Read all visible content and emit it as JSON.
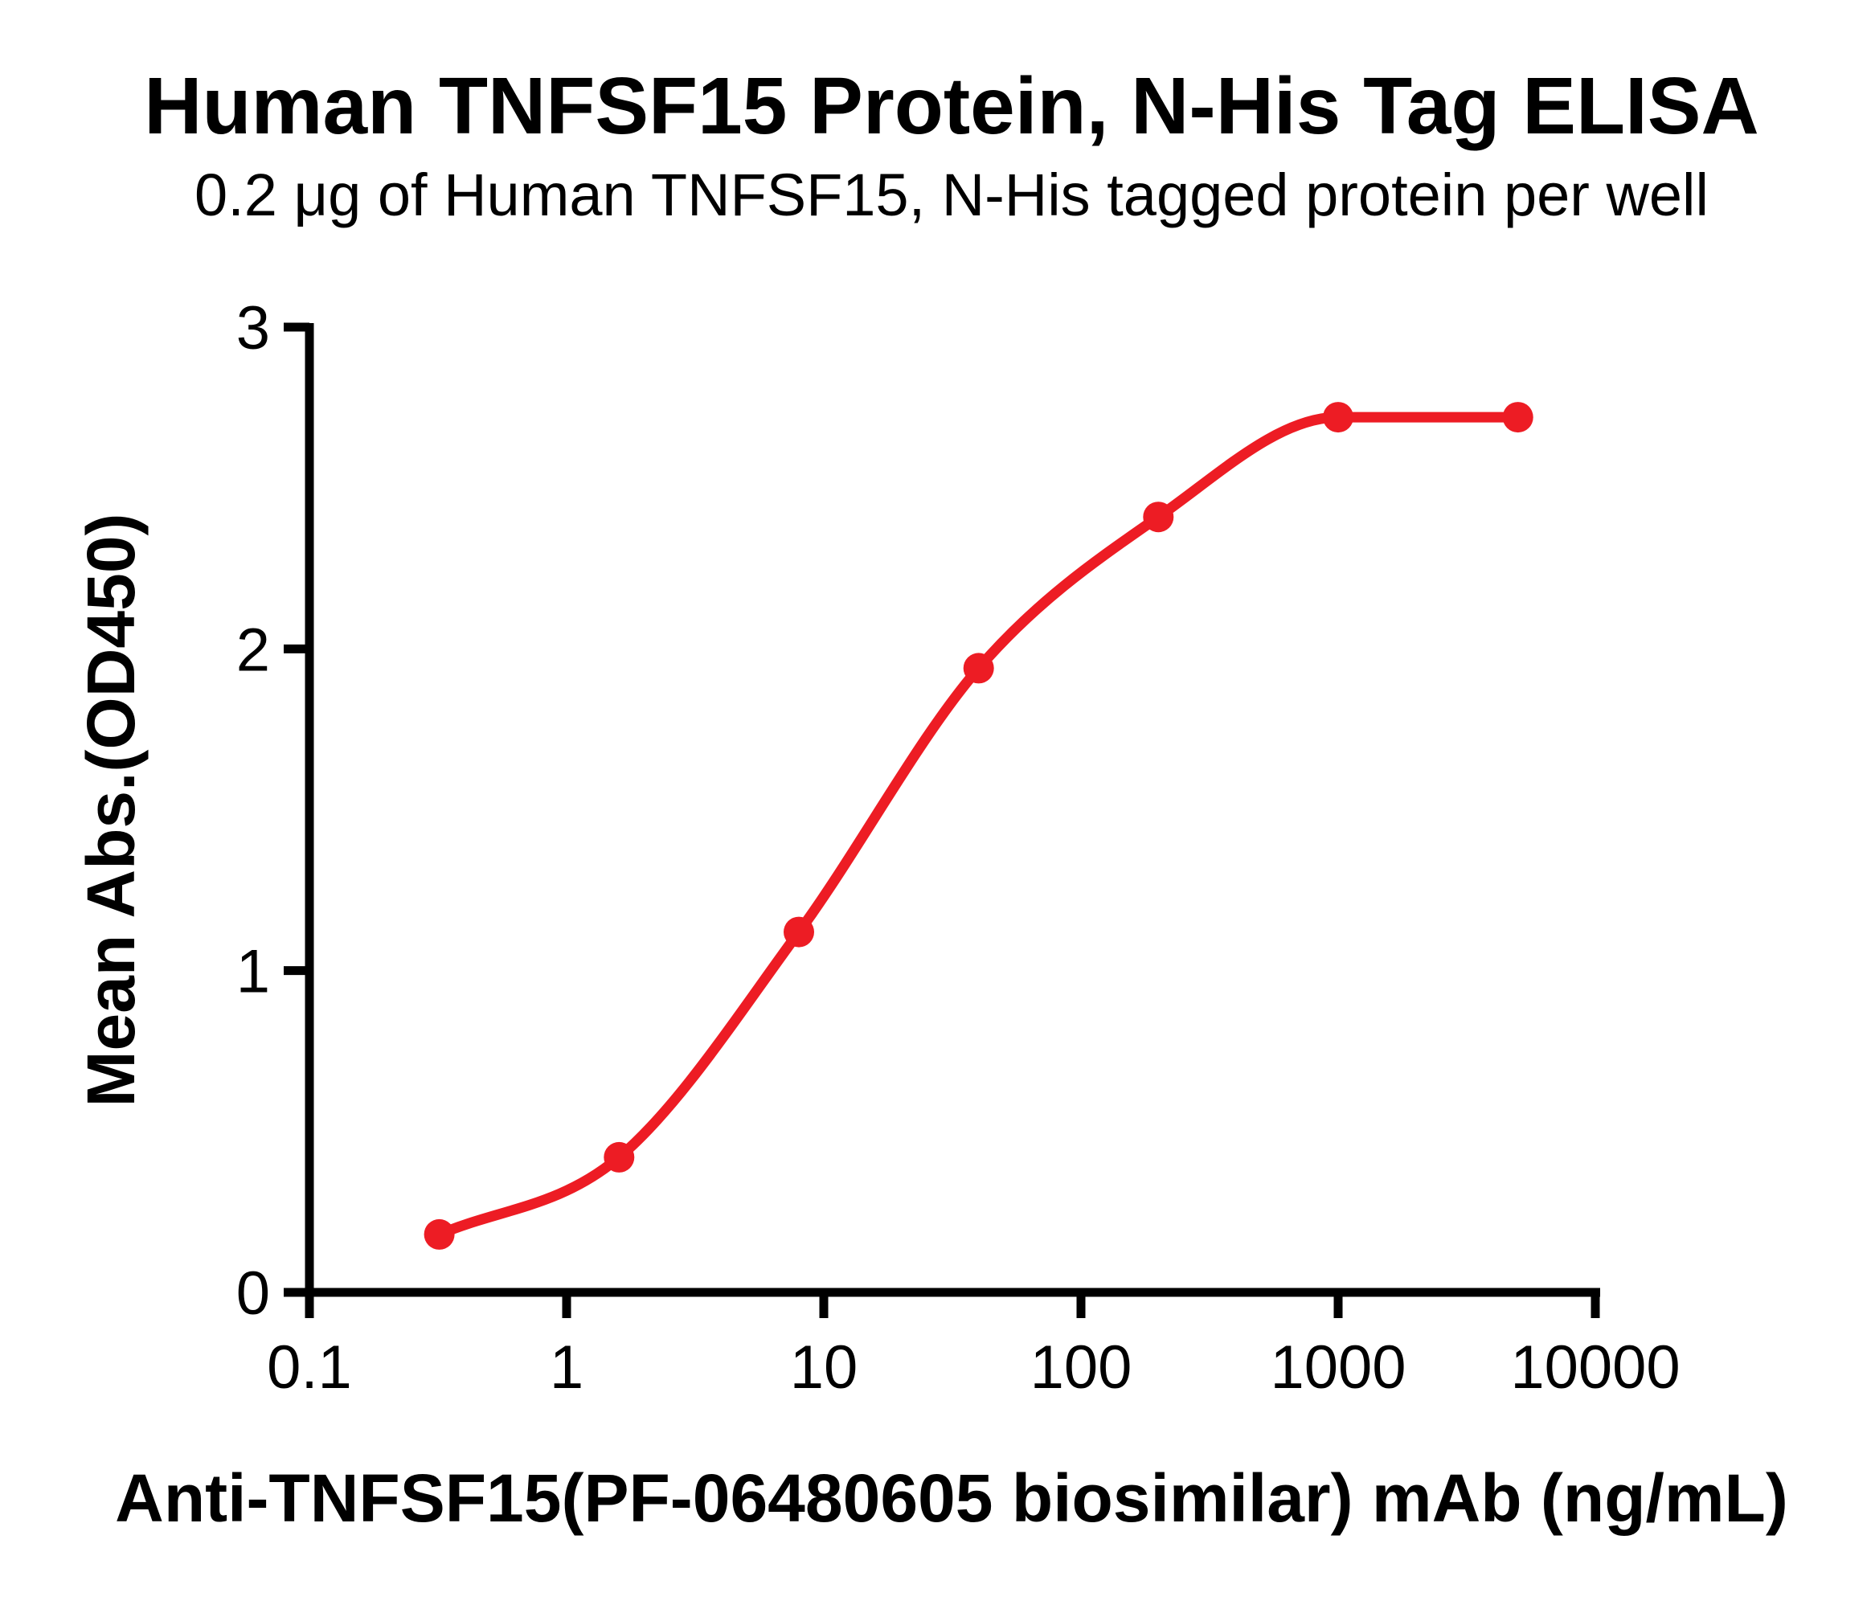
{
  "page": {
    "background": "#ffffff",
    "text_color": "#000000"
  },
  "chart_data": {
    "type": "scatter",
    "curve": "sigmoid-fit-line",
    "title": "Human TNFSF15 Protein, N-His Tag ELISA",
    "subtitle": "0.2 μg of Human TNFSF15, N-His tagged protein per well",
    "xlabel": "Anti-TNFSF15(PF-06480605 biosimilar) mAb (ng/mL)",
    "ylabel": "Mean Abs.(OD450)",
    "x_scale": "log",
    "xlim": [
      0.1,
      10000
    ],
    "ylim": [
      0,
      3
    ],
    "grid": false,
    "legend": false,
    "axis_color": "#000000",
    "x_ticks": [
      {
        "value": 0.1,
        "label": "0.1"
      },
      {
        "value": 1,
        "label": "1"
      },
      {
        "value": 10,
        "label": "10"
      },
      {
        "value": 100,
        "label": "100"
      },
      {
        "value": 1000,
        "label": "1000"
      },
      {
        "value": 10000,
        "label": "10000"
      }
    ],
    "y_ticks": [
      {
        "value": 0,
        "label": "0"
      },
      {
        "value": 1,
        "label": "1"
      },
      {
        "value": 2,
        "label": "2"
      },
      {
        "value": 3,
        "label": "3"
      }
    ],
    "series": [
      {
        "color": "#ED1C24",
        "marker": "circle",
        "x": [
          0.32,
          1.6,
          8,
          40,
          200,
          1000,
          5000
        ],
        "y": [
          0.18,
          0.42,
          1.12,
          1.94,
          2.41,
          2.72,
          2.72
        ]
      }
    ]
  }
}
